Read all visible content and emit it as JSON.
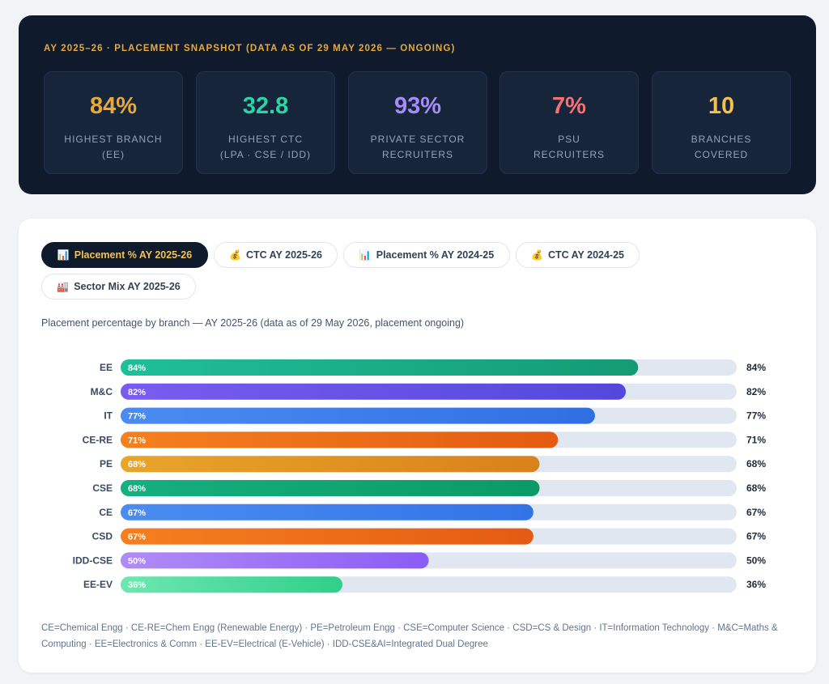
{
  "snapshot": {
    "title": "AY 2025–26 · PLACEMENT SNAPSHOT (DATA AS OF 29 MAY 2026 — ONGOING)",
    "stats": [
      {
        "value": "84%",
        "label_line1": "HIGHEST BRANCH",
        "label_line2": "(EE)",
        "color": "#e8a93a"
      },
      {
        "value": "32.8",
        "label_line1": "HIGHEST CTC",
        "label_line2": "(LPA · CSE / IDD)",
        "color": "#2dd4a6"
      },
      {
        "value": "93%",
        "label_line1": "PRIVATE SECTOR",
        "label_line2": "RECRUITERS",
        "color": "#a78bfa"
      },
      {
        "value": "7%",
        "label_line1": "PSU",
        "label_line2": "RECRUITERS",
        "color": "#f87171"
      },
      {
        "value": "10",
        "label_line1": "BRANCHES",
        "label_line2": "COVERED",
        "color": "#f5c04e"
      }
    ]
  },
  "tabs": [
    {
      "icon": "📊",
      "icon_name": "bar-chart-icon",
      "label": "Placement % AY 2025-26",
      "active": true
    },
    {
      "icon": "💰",
      "icon_name": "money-bag-icon",
      "label": "CTC AY 2025-26",
      "active": false
    },
    {
      "icon": "📊",
      "icon_name": "bar-chart-icon",
      "label": "Placement % AY 2024-25",
      "active": false
    },
    {
      "icon": "💰",
      "icon_name": "money-bag-icon",
      "label": "CTC AY 2024-25",
      "active": false
    },
    {
      "icon": "🏭",
      "icon_name": "factory-icon",
      "label": "Sector Mix AY 2025-26",
      "active": false
    }
  ],
  "chart_caption": "Placement percentage by branch — AY 2025-26 (data as of 29 May 2026, placement ongoing)",
  "chart_data": {
    "type": "bar",
    "orientation": "horizontal",
    "categories": [
      "EE",
      "M&C",
      "IT",
      "CE-RE",
      "PE",
      "CSE",
      "CE",
      "CSD",
      "IDD-CSE",
      "EE-EV"
    ],
    "values": [
      84,
      82,
      77,
      71,
      68,
      68,
      67,
      67,
      50,
      36
    ],
    "value_suffix": "%",
    "xlim": [
      0,
      100
    ],
    "grid": false,
    "legend": "none",
    "bar_colors": [
      [
        "#1fbf9a",
        "#149b73"
      ],
      [
        "#7a5cf0",
        "#5348dc"
      ],
      [
        "#4b8cf2",
        "#2f6fe3"
      ],
      [
        "#f5801f",
        "#e45b12"
      ],
      [
        "#e9a52a",
        "#d9811b"
      ],
      [
        "#14b07e",
        "#0c9a66"
      ],
      [
        "#4b8cf2",
        "#3274e8"
      ],
      [
        "#f5801f",
        "#e45b12"
      ],
      [
        "#b08cf7",
        "#8b5cf6"
      ],
      [
        "#6ee7b0",
        "#2fcf8a"
      ]
    ],
    "track_color": "#e1e7f0"
  },
  "legend_note": "CE=Chemical Engg · CE-RE=Chem Engg (Renewable Energy) · PE=Petroleum Engg · CSE=Computer Science · CSD=CS & Design · IT=Information Technology · M&C=Maths & Computing · EE=Electronics & Comm · EE-EV=Electrical (E-Vehicle) · IDD-CSE&AI=Integrated Dual Degree"
}
